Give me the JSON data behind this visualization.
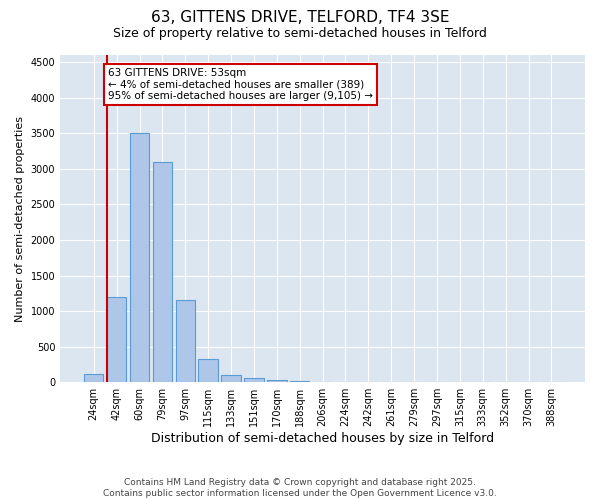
{
  "title": "63, GITTENS DRIVE, TELFORD, TF4 3SE",
  "subtitle": "Size of property relative to semi-detached houses in Telford",
  "xlabel": "Distribution of semi-detached houses by size in Telford",
  "ylabel": "Number of semi-detached properties",
  "categories": [
    "24sqm",
    "42sqm",
    "60sqm",
    "79sqm",
    "97sqm",
    "115sqm",
    "133sqm",
    "151sqm",
    "170sqm",
    "188sqm",
    "206sqm",
    "224sqm",
    "242sqm",
    "261sqm",
    "279sqm",
    "297sqm",
    "315sqm",
    "333sqm",
    "352sqm",
    "370sqm",
    "388sqm"
  ],
  "values": [
    120,
    1200,
    3500,
    3100,
    1150,
    330,
    100,
    60,
    30,
    10,
    5,
    0,
    0,
    0,
    0,
    0,
    0,
    0,
    0,
    0,
    0
  ],
  "bar_color": "#aec6e8",
  "bar_edge_color": "#5b9bd5",
  "vline_color": "#cc0000",
  "vline_position": 0.6,
  "annotation_text": "63 GITTENS DRIVE: 53sqm\n← 4% of semi-detached houses are smaller (389)\n95% of semi-detached houses are larger (9,105) →",
  "annotation_box_color": "#ffffff",
  "annotation_box_edge_color": "#cc0000",
  "ylim": [
    0,
    4600
  ],
  "yticks": [
    0,
    500,
    1000,
    1500,
    2000,
    2500,
    3000,
    3500,
    4000,
    4500
  ],
  "background_color": "#dce6f1",
  "footer_text": "Contains HM Land Registry data © Crown copyright and database right 2025.\nContains public sector information licensed under the Open Government Licence v3.0.",
  "title_fontsize": 11,
  "subtitle_fontsize": 9,
  "xlabel_fontsize": 9,
  "ylabel_fontsize": 8,
  "tick_fontsize": 7,
  "annotation_fontsize": 7.5,
  "footer_fontsize": 6.5
}
